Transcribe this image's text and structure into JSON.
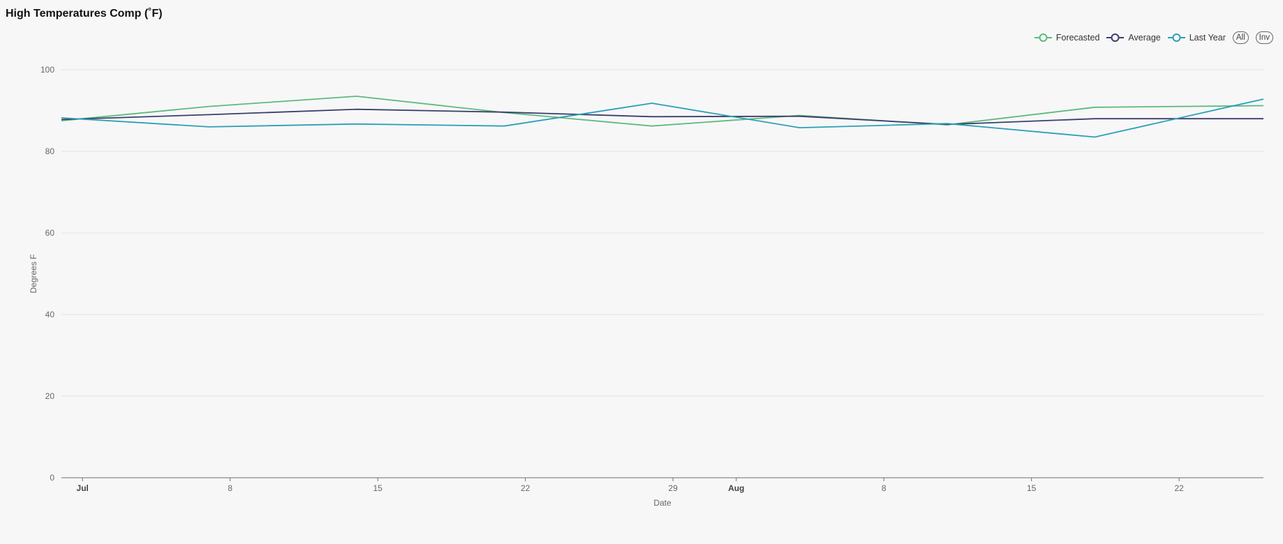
{
  "title": "High Temperatures Comp (˚F)",
  "legend": {
    "buttons": {
      "all": "All",
      "inv": "Inv"
    }
  },
  "chart_data": {
    "type": "line",
    "title": "High Temperatures Comp (˚F)",
    "xlabel": "Date",
    "ylabel": "Degrees F",
    "ylim": [
      0,
      100
    ],
    "y_ticks": [
      0,
      20,
      40,
      60,
      80,
      100
    ],
    "xlim": [
      "2021-06-30",
      "2021-08-26"
    ],
    "x_ticks": [
      {
        "date": "2021-07-01",
        "label": "Jul",
        "major": true
      },
      {
        "date": "2021-07-08",
        "label": "8",
        "major": false
      },
      {
        "date": "2021-07-15",
        "label": "15",
        "major": false
      },
      {
        "date": "2021-07-22",
        "label": "22",
        "major": false
      },
      {
        "date": "2021-07-29",
        "label": "29",
        "major": false
      },
      {
        "date": "2021-08-01",
        "label": "Aug",
        "major": true
      },
      {
        "date": "2021-08-08",
        "label": "8",
        "major": false
      },
      {
        "date": "2021-08-15",
        "label": "15",
        "major": false
      },
      {
        "date": "2021-08-22",
        "label": "22",
        "major": false
      }
    ],
    "grid": true,
    "legend_position": "top-right",
    "x": [
      "2021-06-30",
      "2021-07-07",
      "2021-07-14",
      "2021-07-21",
      "2021-07-28",
      "2021-08-04",
      "2021-08-11",
      "2021-08-18",
      "2021-08-26"
    ],
    "series": [
      {
        "name": "Forecasted",
        "color": "#5dba7d",
        "values": [
          87.5,
          91,
          93.5,
          89.5,
          86.2,
          88.8,
          86.5,
          90.8,
          91.2
        ]
      },
      {
        "name": "Average",
        "color": "#3a3f6b",
        "values": [
          87.8,
          89,
          90.3,
          89.6,
          88.5,
          88.6,
          86.6,
          88,
          88
        ]
      },
      {
        "name": "Last Year",
        "color": "#2b9fb5",
        "values": [
          88.2,
          86,
          86.7,
          86.2,
          91.8,
          85.8,
          86.8,
          83.5,
          92.8
        ]
      }
    ]
  }
}
